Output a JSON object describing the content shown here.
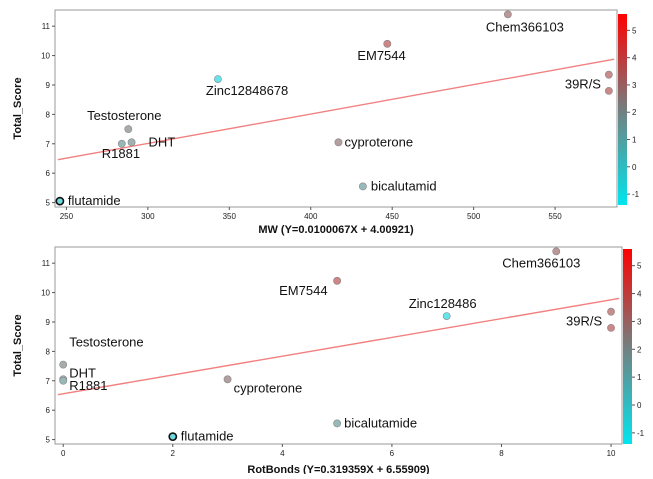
{
  "colors": {
    "fit_line": "#f28080",
    "frame": "#9a9a9a",
    "cb_top": "#ff0000",
    "cb_mid": "#7a7a7a",
    "cb_bottom": "#00e5ee"
  },
  "chart_data": [
    {
      "type": "scatter",
      "ylabel": "Total_Score",
      "xlabel": "MW (Y=0.0100067X + 4.00921)",
      "xlim": [
        243,
        588
      ],
      "ylim": [
        4.85,
        11.55
      ],
      "xticks": [
        250,
        300,
        350,
        400,
        450,
        500,
        550
      ],
      "yticks": [
        5,
        6,
        7,
        8,
        9,
        10,
        11
      ],
      "grid": false,
      "colorbar": {
        "range": [
          -1.4,
          5.6
        ],
        "ticks": [
          -1,
          0,
          1,
          2,
          3,
          4,
          5
        ]
      },
      "fit": {
        "slope": 0.0100067,
        "intercept": 4.00921
      },
      "points": [
        {
          "label": "flutamide",
          "x": 246,
          "y": 5.05,
          "c": -0.4,
          "outline": true
        },
        {
          "label": "Testosterone",
          "x": 288,
          "y": 7.5,
          "c": 1.9
        },
        {
          "label": "DHT",
          "x": 290,
          "y": 7.05,
          "c": 1.6
        },
        {
          "label": "R1881",
          "x": 284,
          "y": 7.0,
          "c": 1.3
        },
        {
          "label": "Zinc12848678",
          "x": 343,
          "y": 9.2,
          "c": -0.9
        },
        {
          "label": "EM7544",
          "x": 447,
          "y": 10.4,
          "c": 3.6
        },
        {
          "label": "Chem366103",
          "x": 521,
          "y": 11.4,
          "c": 2.8
        },
        {
          "label": "cyproterone",
          "x": 417,
          "y": 7.05,
          "c": 2.4
        },
        {
          "label": "bicalutamid",
          "x": 432,
          "y": 5.55,
          "c": 1.2
        },
        {
          "label": "39R/S",
          "x": 583,
          "y": 9.35,
          "c": 3.3
        },
        {
          "label": "",
          "x": 583,
          "y": 8.8,
          "c": 3.5
        }
      ]
    },
    {
      "type": "scatter",
      "ylabel": "Total_Score",
      "xlabel": "RotBonds (Y=0.319359X + 6.55909)",
      "xlim": [
        -0.15,
        10.2
      ],
      "ylim": [
        4.85,
        11.55
      ],
      "xticks": [
        0,
        2,
        4,
        6,
        8,
        10
      ],
      "yticks": [
        5,
        6,
        7,
        8,
        9,
        10,
        11
      ],
      "grid": false,
      "colorbar": {
        "range": [
          -1.4,
          5.6
        ],
        "ticks": [
          -1,
          0,
          1,
          2,
          3,
          4,
          5
        ]
      },
      "fit": {
        "slope": 0.319359,
        "intercept": 6.55909
      },
      "points": [
        {
          "label": "Testosterone",
          "x": 0,
          "y": 7.55,
          "c": 1.9
        },
        {
          "label": "DHT",
          "x": 0,
          "y": 7.05,
          "c": 1.6
        },
        {
          "label": "R1881",
          "x": 0,
          "y": 7.0,
          "c": 1.3
        },
        {
          "label": "flutamide",
          "x": 2,
          "y": 5.1,
          "c": -0.4,
          "outline": true
        },
        {
          "label": "cyproterone",
          "x": 3,
          "y": 7.05,
          "c": 2.4
        },
        {
          "label": "EM7544",
          "x": 5,
          "y": 10.4,
          "c": 3.6
        },
        {
          "label": "bicalutamide",
          "x": 5,
          "y": 5.55,
          "c": 1.2
        },
        {
          "label": "Zinc128486",
          "x": 7,
          "y": 9.2,
          "c": -0.9
        },
        {
          "label": "Chem366103",
          "x": 9,
          "y": 11.4,
          "c": 2.8
        },
        {
          "label": "39R/S",
          "x": 10,
          "y": 9.35,
          "c": 3.3
        },
        {
          "label": "",
          "x": 10,
          "y": 8.8,
          "c": 3.5
        }
      ]
    }
  ]
}
